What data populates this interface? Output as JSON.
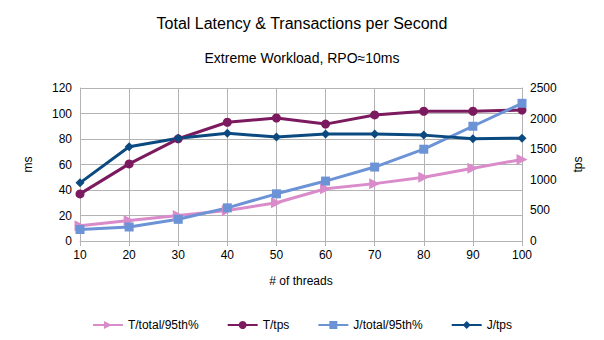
{
  "chart_data": {
    "type": "line",
    "title": "Total Latency & Transactions per Second",
    "subtitle": "Extreme Workload, RPO≈10ms",
    "x_label": "# of threads",
    "y_label": "ms",
    "y2_label": "tps",
    "x": [
      10,
      20,
      30,
      40,
      50,
      60,
      70,
      80,
      90,
      100
    ],
    "xlim": [
      10,
      100
    ],
    "xticks": [
      10,
      20,
      30,
      40,
      50,
      60,
      70,
      80,
      90,
      100
    ],
    "ylim": [
      0,
      120
    ],
    "yticks": [
      0,
      20,
      40,
      60,
      80,
      100,
      120
    ],
    "y2lim": [
      0,
      2500
    ],
    "y2ticks": [
      0,
      500,
      1000,
      1500,
      2000,
      2500
    ],
    "grid": true,
    "legend": "bottom",
    "series": [
      {
        "name": "T/total/95th%",
        "color": "#d98cc9",
        "marker": "triangle",
        "values": [
          12,
          16,
          20,
          24,
          30,
          41,
          45,
          50,
          57,
          64
        ]
      },
      {
        "name": "T/tps",
        "color": "#7b1a5f",
        "marker": "circle",
        "axis": "y2",
        "values": [
          770,
          1260,
          1670,
          1940,
          2010,
          1910,
          2060,
          2120,
          2120,
          2140
        ]
      },
      {
        "name": "J/total/95th%",
        "color": "#6b93d6",
        "marker": "square",
        "values": [
          9,
          11,
          17,
          26,
          37,
          47,
          58,
          72,
          90,
          108
        ]
      },
      {
        "name": "J/tps",
        "color": "#0b4a80",
        "marker": "diamond",
        "axis": "y2",
        "values": [
          950,
          1540,
          1680,
          1760,
          1700,
          1750,
          1750,
          1730,
          1670,
          1680
        ]
      }
    ]
  }
}
